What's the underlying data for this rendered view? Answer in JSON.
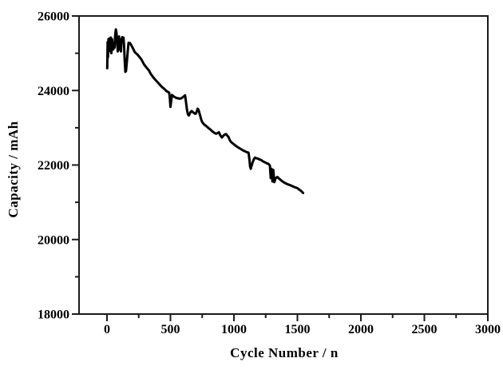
{
  "figure": {
    "background": "#ffffff",
    "axis_color": "#1a1a1a",
    "text_color": "#000000",
    "line_color": "#000000"
  },
  "chart_data": {
    "type": "line",
    "title": "",
    "xlabel": "Cycle Number / n",
    "ylabel": "Capacity / mAh",
    "xlim": [
      -220,
      3000
    ],
    "ylim": [
      18000,
      26000
    ],
    "grid": false,
    "legend": null,
    "x_major_ticks": [
      0,
      500,
      1000,
      1500,
      2000,
      2500,
      3000
    ],
    "x_minor_ticks": [
      250,
      750,
      1250,
      1750,
      2250,
      2750
    ],
    "y_major_ticks": [
      18000,
      20000,
      22000,
      24000,
      26000
    ],
    "y_minor_ticks": [
      19000,
      21000,
      23000,
      25000
    ],
    "series": [
      {
        "name": "Capacity",
        "color": "#000000",
        "points": [
          [
            2,
            24600
          ],
          [
            5,
            25300
          ],
          [
            8,
            24900
          ],
          [
            12,
            25380
          ],
          [
            16,
            25050
          ],
          [
            20,
            25400
          ],
          [
            25,
            25150
          ],
          [
            30,
            25420
          ],
          [
            35,
            25000
          ],
          [
            40,
            25380
          ],
          [
            45,
            25200
          ],
          [
            50,
            25100
          ],
          [
            55,
            25280
          ],
          [
            60,
            25150
          ],
          [
            65,
            25500
          ],
          [
            70,
            25640
          ],
          [
            75,
            25550
          ],
          [
            80,
            25300
          ],
          [
            85,
            25050
          ],
          [
            90,
            25350
          ],
          [
            95,
            25450
          ],
          [
            100,
            25100
          ],
          [
            105,
            25300
          ],
          [
            110,
            25050
          ],
          [
            115,
            25380
          ],
          [
            120,
            25430
          ],
          [
            125,
            25350
          ],
          [
            130,
            25420
          ],
          [
            135,
            25200
          ],
          [
            140,
            24800
          ],
          [
            145,
            24500
          ],
          [
            150,
            24520
          ],
          [
            155,
            24700
          ],
          [
            160,
            24900
          ],
          [
            165,
            25100
          ],
          [
            170,
            25280
          ],
          [
            182,
            25270
          ],
          [
            192,
            25210
          ],
          [
            205,
            25130
          ],
          [
            219,
            25030
          ],
          [
            232,
            24990
          ],
          [
            245,
            24950
          ],
          [
            258,
            24890
          ],
          [
            270,
            24840
          ],
          [
            292,
            24700
          ],
          [
            310,
            24620
          ],
          [
            330,
            24540
          ],
          [
            344,
            24450
          ],
          [
            365,
            24350
          ],
          [
            380,
            24290
          ],
          [
            397,
            24230
          ],
          [
            420,
            24140
          ],
          [
            435,
            24090
          ],
          [
            449,
            24050
          ],
          [
            462,
            24010
          ],
          [
            470,
            23980
          ],
          [
            482,
            23960
          ],
          [
            490,
            23940
          ],
          [
            495,
            23800
          ],
          [
            500,
            23560
          ],
          [
            505,
            23700
          ],
          [
            512,
            23880
          ],
          [
            522,
            23850
          ],
          [
            535,
            23820
          ],
          [
            548,
            23800
          ],
          [
            560,
            23790
          ],
          [
            572,
            23780
          ],
          [
            585,
            23790
          ],
          [
            598,
            23820
          ],
          [
            608,
            23850
          ],
          [
            615,
            23870
          ],
          [
            622,
            23700
          ],
          [
            630,
            23480
          ],
          [
            638,
            23360
          ],
          [
            645,
            23330
          ],
          [
            652,
            23380
          ],
          [
            660,
            23430
          ],
          [
            668,
            23450
          ],
          [
            676,
            23420
          ],
          [
            684,
            23400
          ],
          [
            692,
            23380
          ],
          [
            700,
            23380
          ],
          [
            708,
            23450
          ],
          [
            714,
            23510
          ],
          [
            720,
            23490
          ],
          [
            728,
            23400
          ],
          [
            736,
            23300
          ],
          [
            744,
            23200
          ],
          [
            752,
            23140
          ],
          [
            765,
            23090
          ],
          [
            784,
            23040
          ],
          [
            800,
            22990
          ],
          [
            815,
            22950
          ],
          [
            828,
            22910
          ],
          [
            840,
            22880
          ],
          [
            852,
            22850
          ],
          [
            862,
            22840
          ],
          [
            872,
            22860
          ],
          [
            882,
            22880
          ],
          [
            892,
            22800
          ],
          [
            905,
            22740
          ],
          [
            918,
            22790
          ],
          [
            928,
            22820
          ],
          [
            938,
            22830
          ],
          [
            948,
            22790
          ],
          [
            958,
            22750
          ],
          [
            968,
            22660
          ],
          [
            980,
            22610
          ],
          [
            995,
            22570
          ],
          [
            1010,
            22530
          ],
          [
            1025,
            22490
          ],
          [
            1040,
            22460
          ],
          [
            1055,
            22430
          ],
          [
            1068,
            22400
          ],
          [
            1080,
            22380
          ],
          [
            1092,
            22360
          ],
          [
            1105,
            22340
          ],
          [
            1115,
            22330
          ],
          [
            1122,
            22150
          ],
          [
            1128,
            21950
          ],
          [
            1133,
            21900
          ],
          [
            1140,
            21990
          ],
          [
            1148,
            22080
          ],
          [
            1158,
            22160
          ],
          [
            1167,
            22200
          ],
          [
            1178,
            22180
          ],
          [
            1190,
            22170
          ],
          [
            1202,
            22150
          ],
          [
            1215,
            22130
          ],
          [
            1228,
            22100
          ],
          [
            1240,
            22080
          ],
          [
            1252,
            22060
          ],
          [
            1262,
            22040
          ],
          [
            1272,
            22030
          ],
          [
            1283,
            21990
          ],
          [
            1290,
            21650
          ],
          [
            1296,
            21900
          ],
          [
            1303,
            21560
          ],
          [
            1310,
            21870
          ],
          [
            1318,
            21540
          ],
          [
            1328,
            21640
          ],
          [
            1342,
            21680
          ],
          [
            1358,
            21630
          ],
          [
            1378,
            21570
          ],
          [
            1400,
            21520
          ],
          [
            1425,
            21480
          ],
          [
            1450,
            21450
          ],
          [
            1475,
            21410
          ],
          [
            1500,
            21380
          ],
          [
            1515,
            21340
          ],
          [
            1530,
            21300
          ],
          [
            1545,
            21250
          ]
        ]
      }
    ]
  }
}
